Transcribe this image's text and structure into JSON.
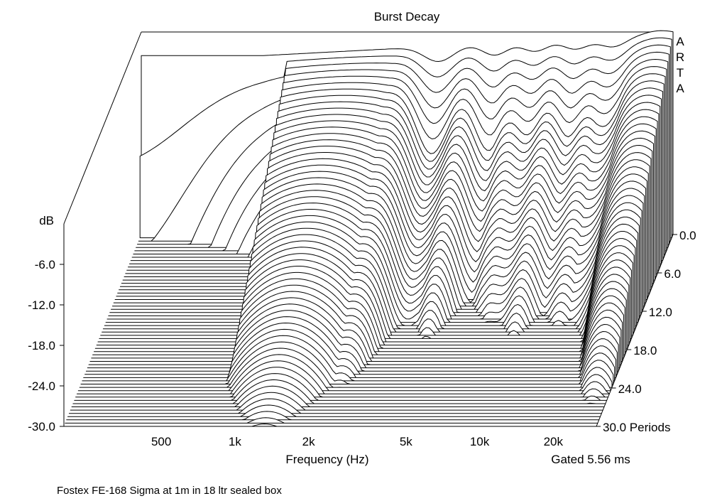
{
  "chart_data": {
    "type": "waterfall",
    "title": "Burst Decay",
    "brand": "ARTA",
    "z_axis_label": "dB",
    "z_ticks": [
      "-6.0",
      "-12.0",
      "-18.0",
      "-24.0",
      "-30.0"
    ],
    "z_range_db": [
      -30,
      0
    ],
    "x_label": "Frequency (Hz)",
    "x_ticks": [
      "500",
      "1k",
      "2k",
      "5k",
      "10k",
      "20k"
    ],
    "x_tick_values_hz": [
      500,
      1000,
      2000,
      5000,
      10000,
      20000
    ],
    "x_scale": "log",
    "x_range_hz": [
      200,
      30000
    ],
    "depth_ticks": [
      "0.0",
      "6.0",
      "12.0",
      "18.0",
      "24.0",
      "30.0 Periods"
    ],
    "depth_range_periods": [
      0,
      30
    ],
    "gate_note": "Gated 5.56 ms",
    "footer_note": "Fostex FE-168 Sigma at 1m in 18 ltr sealed box",
    "series_note": "approx. 60 decay slices from 0 to 30 periods; the front slice is at about -2 to -4 dB, and the later slices sink to the -30 dB floor first at low frequencies, then in a series of dips at high frequencies"
  }
}
